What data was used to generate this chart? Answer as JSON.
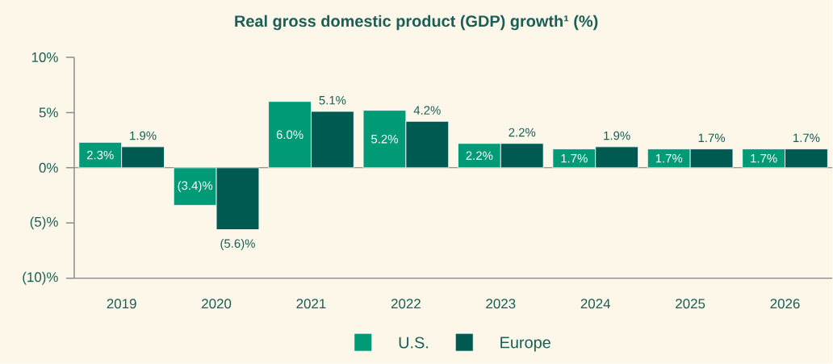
{
  "chart_data": {
    "type": "bar",
    "title": "Real gross domestic product (GDP) growth¹ (%)",
    "categories": [
      "2019",
      "2020",
      "2021",
      "2022",
      "2023",
      "2024",
      "2025",
      "2026"
    ],
    "series": [
      {
        "name": "U.S.",
        "color": "#009a77",
        "values": [
          2.3,
          -3.4,
          6.0,
          5.2,
          2.2,
          1.7,
          1.7,
          1.7
        ],
        "value_labels": [
          "2.3%",
          "(3.4)%",
          "6.0%",
          "5.2%",
          "2.2%",
          "1.7%",
          "1.7%",
          "1.7%"
        ]
      },
      {
        "name": "Europe",
        "color": "#005a52",
        "values": [
          1.9,
          -5.6,
          5.1,
          4.2,
          2.2,
          1.9,
          1.7,
          1.7
        ],
        "value_labels": [
          "1.9%",
          "(5.6)%",
          "5.1%",
          "4.2%",
          "2.2%",
          "1.9%",
          "1.7%",
          "1.7%"
        ]
      }
    ],
    "ylim": [
      -10,
      10
    ],
    "yticks": [
      {
        "value": -10,
        "label": "(10)%"
      },
      {
        "value": -5,
        "label": "(5)%"
      },
      {
        "value": 0,
        "label": "0%"
      },
      {
        "value": 5,
        "label": "5%"
      },
      {
        "value": 10,
        "label": "10%"
      }
    ],
    "ref_lines": [
      {
        "axis": "y",
        "value": 0,
        "color": "#999999"
      }
    ],
    "grid": false,
    "legend": "bottom"
  }
}
